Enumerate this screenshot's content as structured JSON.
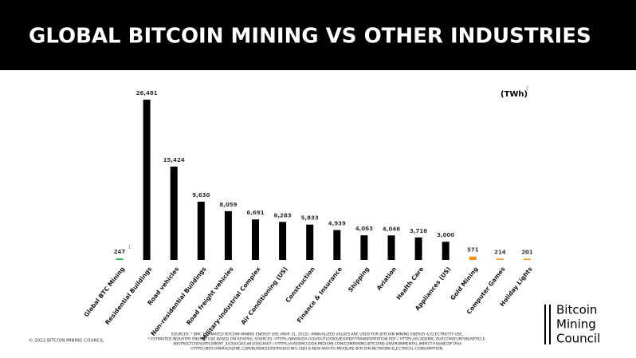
{
  "chart_data": {
    "type": "bar",
    "title": "GLOBAL BITCOIN MINING VS OTHER INDUSTRIES",
    "unit_label": "(TWh)",
    "unit_note": "2",
    "first_note": "1",
    "categories": [
      "Global BTC Mining",
      "Residential Buildings",
      "Road vehicles",
      "Non-residential Buildings",
      "Road freight vehicles",
      "Military-Industrial Complex",
      "Air Conditioning (US)",
      "Construction",
      "Finance & Insurance",
      "Shipping",
      "Aviation",
      "Health Care",
      "Appliances (US)",
      "Gold Mining",
      "Computer Games",
      "Holiday Lights"
    ],
    "values": [
      247,
      26481,
      15424,
      9630,
      8059,
      6691,
      6283,
      5833,
      4939,
      4063,
      4046,
      3716,
      3000,
      571,
      214,
      201
    ],
    "value_labels": [
      "247",
      "26,481",
      "15,424",
      "9,630",
      "8,059",
      "6,691",
      "6,283",
      "5,833",
      "4,939",
      "4,063",
      "4,046",
      "3,716",
      "3,000",
      "571",
      "214",
      "201"
    ],
    "colors": [
      "#2fb24c",
      "#000000",
      "#000000",
      "#000000",
      "#000000",
      "#000000",
      "#000000",
      "#000000",
      "#000000",
      "#000000",
      "#000000",
      "#000000",
      "#000000",
      "#f7941d",
      "#f7941d",
      "#f7941d"
    ],
    "sources": [
      "SOURCES: ¹ BMC ESTIMATED BITCOIN MINING ENERGY USE (MAR 31, 2022). ANNUALIZED VALUES ARE USED FOR BITCOIN MINING ENERGY & ELECTRICITY USE.",
      "² ESTIMATED INDUSTRY ENERGY USE BASED ON SEVERAL SOURCES: HTTPS://WWW.EIA.GOV/OUTLOOKS/IEO/PDF/TRANSPORTATION.PDF / HTTPS://ACADEMIC.OUP.COM/EURPUB/ARTICLE-",
      "ABSTRACT/30/SUPPLEMENT_5/CKAA165.843/5914607 / HTTPS://HASSMCCOOK.MEDIUM.COM/COMPARING-BITCOINS-ENVIRONMENTAL-IMPACT-F5A6B1DF1F64",
      "HTTPS://BITCOINMAGAZINE.COM/BUSINESS/INTRODUCING-CBEI-A-NEW-WAY-TO-MEASURE-BITCOIN-NETWORK-ELECTRICAL-CONSUMPTION."
    ],
    "copyright": "© 2022 BITCOIN MINING COUNCIL",
    "logo": [
      "Bitcoin",
      "Mining",
      "Council"
    ]
  }
}
